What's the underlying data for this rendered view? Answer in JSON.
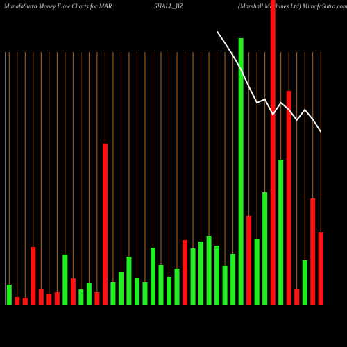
{
  "chart_data": {
    "type": "bar",
    "title_parts": [
      "MunafaSutra  Money Flow  Charts for MAR",
      "SHALL_BZ",
      "(Marshall Machines Ltd) MunafaSutra.com"
    ],
    "categories": [
      null,
      null,
      null,
      null,
      null,
      null,
      null,
      null,
      null,
      null,
      null,
      null,
      null,
      null,
      null,
      null,
      null,
      null,
      null,
      null,
      null,
      null,
      null,
      null,
      null,
      null,
      null,
      null,
      null,
      null,
      null,
      null,
      null,
      null,
      null,
      null,
      null,
      null,
      null,
      null
    ],
    "ylim": [
      0,
      440
    ],
    "grid_color": "#b5651d",
    "series": [
      {
        "type": "bar",
        "values": [
          30,
          12,
          11,
          84,
          24,
          16,
          19,
          73,
          39,
          23,
          32,
          19,
          233,
          33,
          48,
          70,
          40,
          33,
          83,
          58,
          41,
          53,
          94,
          82,
          92,
          100,
          86,
          57,
          74,
          385,
          129,
          96,
          163,
          440,
          210,
          309,
          24,
          65,
          154,
          105
        ],
        "colors": [
          "#22ee22",
          "#ff1111",
          "#ff1111",
          "#ff1111",
          "#ff1111",
          "#ff1111",
          "#ff1111",
          "#22ee22",
          "#ff1111",
          "#22ee22",
          "#22ee22",
          "#ff1111",
          "#ff1111",
          "#22ee22",
          "#22ee22",
          "#22ee22",
          "#22ee22",
          "#22ee22",
          "#22ee22",
          "#22ee22",
          "#22ee22",
          "#22ee22",
          "#ff1111",
          "#22ee22",
          "#22ee22",
          "#22ee22",
          "#22ee22",
          "#22ee22",
          "#22ee22",
          "#22ee22",
          "#ff1111",
          "#22ee22",
          "#22ee22",
          "#ff1111",
          "#22ee22",
          "#ff1111",
          "#ff1111",
          "#22ee22",
          "#ff1111",
          "#ff1111"
        ]
      },
      {
        "type": "line",
        "color": "#ffffff",
        "values": [
          null,
          null,
          null,
          null,
          null,
          null,
          null,
          null,
          null,
          null,
          null,
          null,
          null,
          null,
          null,
          null,
          null,
          null,
          null,
          null,
          null,
          null,
          null,
          null,
          null,
          null,
          395,
          378,
          360,
          340,
          315,
          292,
          297,
          275,
          292,
          282,
          267,
          282,
          268,
          250
        ]
      }
    ]
  }
}
